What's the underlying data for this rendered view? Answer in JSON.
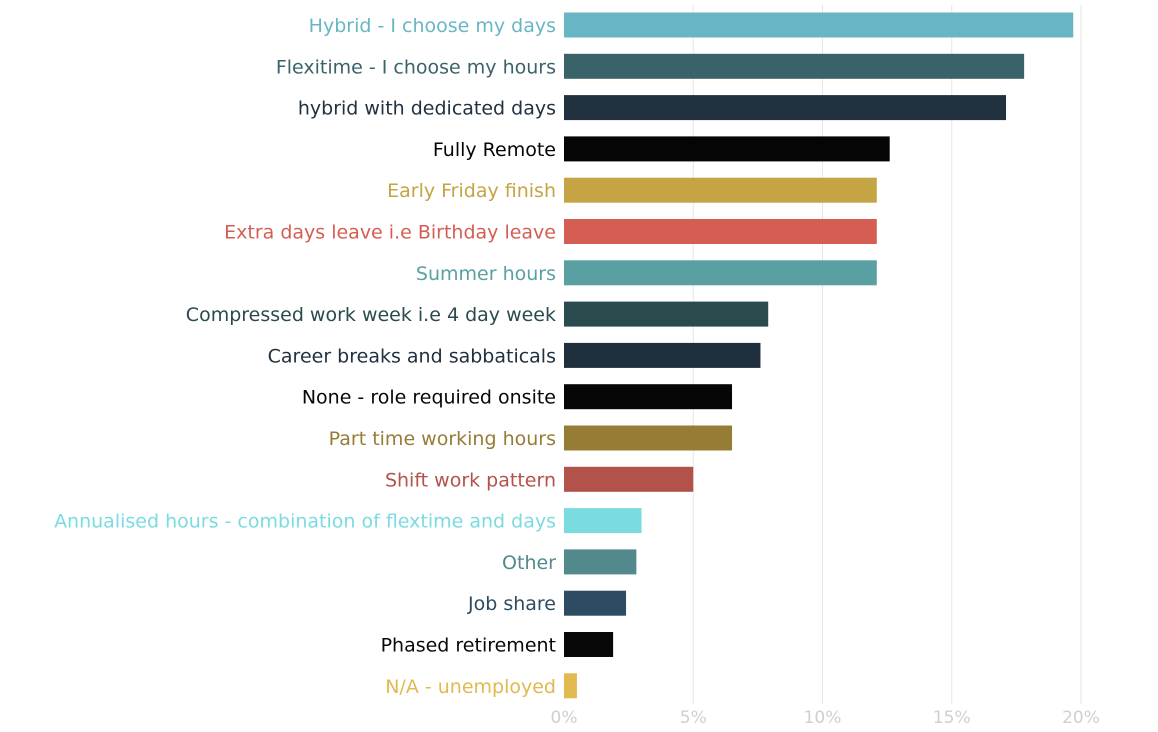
{
  "chart_data": {
    "type": "bar",
    "orientation": "horizontal",
    "title": "",
    "xlabel": "",
    "ylabel": "",
    "xlim": [
      0,
      20
    ],
    "x_ticks": [
      "0%",
      "5%",
      "10%",
      "15%",
      "20%"
    ],
    "grid": "vertical",
    "legend": "none",
    "categories": [
      "Hybrid - I choose my days",
      "Flexitime - I choose my hours",
      "hybrid with dedicated days",
      "Fully Remote",
      "Early Friday finish",
      "Extra days leave i.e Birthday leave",
      "Summer hours",
      "Compressed work week i.e 4 day week",
      "Career breaks and sabbaticals",
      "None - role required onsite",
      "Part time working hours",
      "Shift work pattern",
      "Annualised hours - combination of flextime and days",
      "Other",
      "Job share",
      "Phased retirement",
      "N/A - unemployed"
    ],
    "values": [
      19.7,
      17.8,
      17.1,
      12.6,
      12.1,
      12.1,
      12.1,
      7.9,
      7.6,
      6.5,
      6.5,
      5.0,
      3.0,
      2.8,
      2.4,
      1.9,
      0.5
    ],
    "colors": [
      "#68b6c4",
      "#3a6369",
      "#213140",
      "#050505",
      "#c4a443",
      "#d45e53",
      "#5a9fa2",
      "#2a4a4e",
      "#1f2f3d",
      "#060606",
      "#977c35",
      "#b2524a",
      "#7adbe0",
      "#52898d",
      "#2d4c61",
      "#080808",
      "#e2b94f"
    ]
  }
}
